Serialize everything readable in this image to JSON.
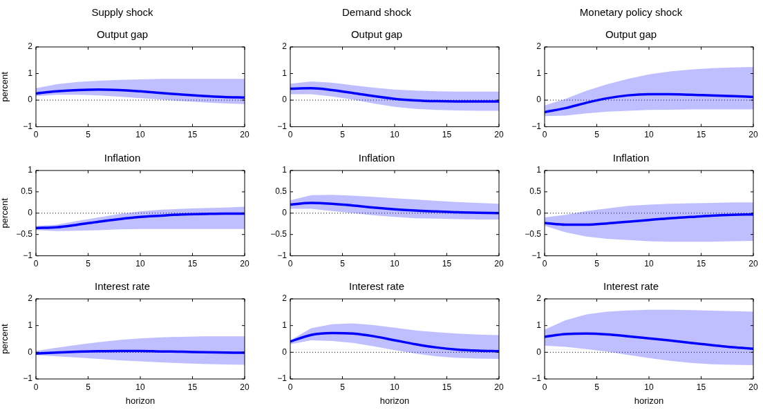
{
  "chart_data": [
    {
      "type": "line",
      "title": "Supply shock",
      "subtitle": "Output gap",
      "ylabel": "percent",
      "xlim": [
        0,
        20
      ],
      "xticks": [
        0,
        5,
        10,
        15,
        20
      ],
      "ylim": [
        -1,
        2
      ],
      "yticks": [
        -1,
        0,
        1,
        2
      ],
      "grid": false,
      "marker": "none",
      "x": [
        0,
        2,
        4,
        6,
        8,
        10,
        12,
        14,
        16,
        18,
        20
      ],
      "series": [
        {
          "color": "#0000ff",
          "values": [
            0.25,
            0.33,
            0.38,
            0.4,
            0.38,
            0.33,
            0.27,
            0.21,
            0.16,
            0.12,
            0.1
          ],
          "upper": [
            0.45,
            0.6,
            0.68,
            0.73,
            0.76,
            0.78,
            0.8,
            0.8,
            0.8,
            0.8,
            0.8
          ],
          "lower": [
            0.15,
            0.2,
            0.2,
            0.18,
            0.13,
            0.07,
            0.02,
            -0.04,
            -0.08,
            -0.12,
            -0.15
          ]
        }
      ],
      "ref_lines": [
        {
          "axis": "y",
          "value": 0,
          "color": "#000000",
          "line_style": "dotted"
        }
      ]
    },
    {
      "type": "line",
      "title": "Demand shock",
      "subtitle": "Output gap",
      "xlim": [
        0,
        20
      ],
      "xticks": [
        0,
        5,
        10,
        15,
        20
      ],
      "ylim": [
        -1,
        2
      ],
      "yticks": [
        -1,
        0,
        1,
        2
      ],
      "grid": false,
      "marker": "none",
      "x": [
        0,
        2,
        4,
        6,
        8,
        10,
        12,
        14,
        16,
        18,
        20
      ],
      "series": [
        {
          "color": "#0000ff",
          "values": [
            0.43,
            0.45,
            0.38,
            0.27,
            0.15,
            0.05,
            -0.01,
            -0.04,
            -0.05,
            -0.05,
            -0.05
          ],
          "upper": [
            0.62,
            0.7,
            0.66,
            0.56,
            0.47,
            0.4,
            0.36,
            0.33,
            0.32,
            0.32,
            0.32
          ],
          "lower": [
            0.22,
            0.22,
            0.14,
            0.02,
            -0.13,
            -0.25,
            -0.33,
            -0.37,
            -0.39,
            -0.4,
            -0.4
          ]
        }
      ],
      "ref_lines": [
        {
          "axis": "y",
          "value": 0,
          "color": "#000000",
          "line_style": "dotted"
        }
      ]
    },
    {
      "type": "line",
      "title": "Monetary policy shock",
      "subtitle": "Output gap",
      "xlim": [
        0,
        20
      ],
      "xticks": [
        0,
        5,
        10,
        15,
        20
      ],
      "ylim": [
        -1,
        2
      ],
      "yticks": [
        -1,
        0,
        1,
        2
      ],
      "grid": false,
      "marker": "none",
      "x": [
        0,
        2,
        4,
        6,
        8,
        10,
        12,
        14,
        16,
        18,
        20
      ],
      "series": [
        {
          "color": "#0000ff",
          "values": [
            -0.45,
            -0.3,
            -0.1,
            0.07,
            0.18,
            0.22,
            0.22,
            0.2,
            0.18,
            0.15,
            0.12
          ],
          "upper": [
            -0.2,
            0.05,
            0.35,
            0.6,
            0.8,
            0.97,
            1.08,
            1.15,
            1.2,
            1.23,
            1.25
          ],
          "lower": [
            -0.6,
            -0.58,
            -0.5,
            -0.43,
            -0.4,
            -0.37,
            -0.36,
            -0.35,
            -0.35,
            -0.35,
            -0.35
          ]
        }
      ],
      "ref_lines": [
        {
          "axis": "y",
          "value": 0,
          "color": "#000000",
          "line_style": "dotted"
        }
      ]
    },
    {
      "type": "line",
      "title": "Inflation",
      "ylabel": "percent",
      "xlim": [
        0,
        20
      ],
      "xticks": [
        0,
        5,
        10,
        15,
        20
      ],
      "ylim": [
        -1,
        1
      ],
      "yticks": [
        -1,
        -0.5,
        0,
        0.5,
        1
      ],
      "grid": false,
      "marker": "none",
      "x": [
        0,
        2,
        4,
        6,
        8,
        10,
        12,
        14,
        16,
        18,
        20
      ],
      "series": [
        {
          "color": "#0000ff",
          "values": [
            -0.35,
            -0.33,
            -0.27,
            -0.2,
            -0.14,
            -0.09,
            -0.06,
            -0.03,
            -0.02,
            -0.01,
            -0.01
          ],
          "upper": [
            -0.3,
            -0.27,
            -0.18,
            -0.1,
            -0.02,
            0.04,
            0.08,
            0.1,
            0.12,
            0.13,
            0.15
          ],
          "lower": [
            -0.4,
            -0.42,
            -0.41,
            -0.4,
            -0.38,
            -0.37,
            -0.37,
            -0.37,
            -0.37,
            -0.37,
            -0.37
          ]
        }
      ],
      "ref_lines": [
        {
          "axis": "y",
          "value": 0,
          "color": "#000000",
          "line_style": "dotted"
        }
      ]
    },
    {
      "type": "line",
      "title": "Inflation",
      "xlim": [
        0,
        20
      ],
      "xticks": [
        0,
        5,
        10,
        15,
        20
      ],
      "ylim": [
        -1,
        1
      ],
      "yticks": [
        -1,
        -0.5,
        0,
        0.5,
        1
      ],
      "grid": false,
      "marker": "none",
      "x": [
        0,
        2,
        4,
        6,
        8,
        10,
        12,
        14,
        16,
        18,
        20
      ],
      "series": [
        {
          "color": "#0000ff",
          "values": [
            0.2,
            0.24,
            0.22,
            0.18,
            0.13,
            0.09,
            0.06,
            0.04,
            0.02,
            0.01,
            0.0
          ],
          "upper": [
            0.3,
            0.42,
            0.43,
            0.41,
            0.38,
            0.35,
            0.32,
            0.29,
            0.26,
            0.24,
            0.22
          ],
          "lower": [
            0.1,
            0.1,
            0.05,
            0.0,
            -0.05,
            -0.09,
            -0.12,
            -0.13,
            -0.14,
            -0.15,
            -0.15
          ]
        }
      ],
      "ref_lines": [
        {
          "axis": "y",
          "value": 0,
          "color": "#000000",
          "line_style": "dotted"
        }
      ]
    },
    {
      "type": "line",
      "title": "Inflation",
      "xlim": [
        0,
        20
      ],
      "xticks": [
        0,
        5,
        10,
        15,
        20
      ],
      "ylim": [
        -1,
        1
      ],
      "yticks": [
        -1,
        -0.5,
        0,
        0.5,
        1
      ],
      "grid": false,
      "marker": "none",
      "x": [
        0,
        2,
        4,
        6,
        8,
        10,
        12,
        14,
        16,
        18,
        20
      ],
      "series": [
        {
          "color": "#0000ff",
          "values": [
            -0.23,
            -0.27,
            -0.27,
            -0.24,
            -0.2,
            -0.16,
            -0.12,
            -0.09,
            -0.06,
            -0.04,
            -0.03
          ],
          "upper": [
            -0.1,
            -0.04,
            0.05,
            0.11,
            0.17,
            0.2,
            0.22,
            0.23,
            0.24,
            0.25,
            0.25
          ],
          "lower": [
            -0.3,
            -0.45,
            -0.55,
            -0.6,
            -0.63,
            -0.66,
            -0.67,
            -0.67,
            -0.67,
            -0.66,
            -0.65
          ]
        }
      ],
      "ref_lines": [
        {
          "axis": "y",
          "value": 0,
          "color": "#000000",
          "line_style": "dotted"
        }
      ]
    },
    {
      "type": "line",
      "title": "Interest rate",
      "xlabel": "horizon",
      "ylabel": "percent",
      "xlim": [
        0,
        20
      ],
      "xticks": [
        0,
        5,
        10,
        15,
        20
      ],
      "ylim": [
        -1,
        2
      ],
      "yticks": [
        -1,
        0,
        1,
        2
      ],
      "grid": false,
      "marker": "none",
      "x": [
        0,
        2,
        4,
        6,
        8,
        10,
        12,
        14,
        16,
        18,
        20
      ],
      "series": [
        {
          "color": "#0000ff",
          "values": [
            -0.05,
            -0.01,
            0.02,
            0.04,
            0.05,
            0.05,
            0.03,
            0.02,
            0.0,
            -0.01,
            -0.02
          ],
          "upper": [
            0.05,
            0.17,
            0.28,
            0.38,
            0.46,
            0.52,
            0.56,
            0.58,
            0.6,
            0.6,
            0.6
          ],
          "lower": [
            -0.1,
            -0.15,
            -0.2,
            -0.25,
            -0.3,
            -0.34,
            -0.38,
            -0.41,
            -0.44,
            -0.46,
            -0.47
          ]
        }
      ],
      "ref_lines": [
        {
          "axis": "y",
          "value": 0,
          "color": "#000000",
          "line_style": "dotted"
        }
      ]
    },
    {
      "type": "line",
      "title": "Interest rate",
      "xlabel": "horizon",
      "xlim": [
        0,
        20
      ],
      "xticks": [
        0,
        5,
        10,
        15,
        20
      ],
      "ylim": [
        -1,
        2
      ],
      "yticks": [
        -1,
        0,
        1,
        2
      ],
      "grid": false,
      "marker": "none",
      "x": [
        0,
        2,
        4,
        6,
        8,
        10,
        12,
        14,
        16,
        18,
        20
      ],
      "series": [
        {
          "color": "#0000ff",
          "values": [
            0.4,
            0.65,
            0.72,
            0.7,
            0.6,
            0.45,
            0.3,
            0.18,
            0.1,
            0.06,
            0.04
          ],
          "upper": [
            0.45,
            0.9,
            1.05,
            1.08,
            1.02,
            0.92,
            0.82,
            0.75,
            0.7,
            0.66,
            0.64
          ],
          "lower": [
            0.3,
            0.45,
            0.42,
            0.35,
            0.22,
            0.08,
            -0.05,
            -0.15,
            -0.21,
            -0.24,
            -0.25
          ]
        }
      ],
      "ref_lines": [
        {
          "axis": "y",
          "value": 0,
          "color": "#000000",
          "line_style": "dotted"
        }
      ]
    },
    {
      "type": "line",
      "title": "Interest rate",
      "xlabel": "horizon",
      "xlim": [
        0,
        20
      ],
      "xticks": [
        0,
        5,
        10,
        15,
        20
      ],
      "ylim": [
        -1,
        2
      ],
      "yticks": [
        -1,
        0,
        1,
        2
      ],
      "grid": false,
      "marker": "none",
      "x": [
        0,
        2,
        4,
        6,
        8,
        10,
        12,
        14,
        16,
        18,
        20
      ],
      "series": [
        {
          "color": "#0000ff",
          "values": [
            0.58,
            0.68,
            0.7,
            0.67,
            0.6,
            0.52,
            0.44,
            0.35,
            0.27,
            0.19,
            0.13
          ],
          "upper": [
            0.85,
            1.2,
            1.42,
            1.52,
            1.57,
            1.59,
            1.59,
            1.58,
            1.56,
            1.54,
            1.52
          ],
          "lower": [
            0.25,
            0.2,
            0.12,
            0.02,
            -0.1,
            -0.22,
            -0.32,
            -0.4,
            -0.45,
            -0.47,
            -0.48
          ]
        }
      ],
      "ref_lines": [
        {
          "axis": "y",
          "value": 0,
          "color": "#000000",
          "line_style": "dotted"
        }
      ]
    }
  ]
}
